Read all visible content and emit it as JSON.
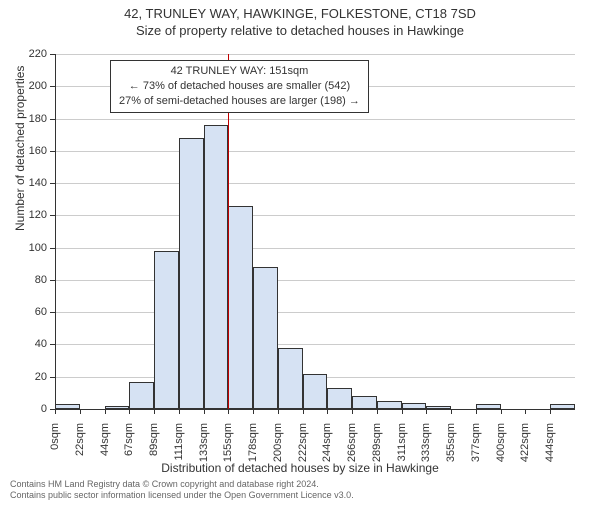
{
  "titles": {
    "main": "42, TRUNLEY WAY, HAWKINGE, FOLKESTONE, CT18 7SD",
    "sub": "Size of property relative to detached houses in Hawkinge"
  },
  "axes": {
    "y_title": "Number of detached properties",
    "x_title": "Distribution of detached houses by size in Hawkinge",
    "ylim": [
      0,
      220
    ],
    "ytick_step": 20,
    "y_ticks": [
      0,
      20,
      40,
      60,
      80,
      100,
      120,
      140,
      160,
      180,
      200,
      220
    ],
    "x_labels": [
      "0sqm",
      "22sqm",
      "44sqm",
      "67sqm",
      "89sqm",
      "111sqm",
      "133sqm",
      "155sqm",
      "178sqm",
      "200sqm",
      "222sqm",
      "244sqm",
      "266sqm",
      "289sqm",
      "311sqm",
      "333sqm",
      "355sqm",
      "377sqm",
      "400sqm",
      "422sqm",
      "444sqm"
    ]
  },
  "histogram": {
    "type": "histogram",
    "bar_color": "#d6e2f3",
    "bar_border": "#333333",
    "grid_color": "#cccccc",
    "background_color": "#ffffff",
    "values": [
      3,
      0,
      2,
      17,
      98,
      168,
      176,
      126,
      88,
      38,
      22,
      13,
      8,
      5,
      4,
      2,
      0,
      3,
      0,
      0,
      3
    ]
  },
  "reference": {
    "line_color": "#c00000",
    "x_index": 7,
    "info_lines": {
      "l1": "42 TRUNLEY WAY: 151sqm",
      "l2": "← 73% of detached houses are smaller (542)",
      "l3": "27% of semi-detached houses are larger (198) →"
    }
  },
  "footer": {
    "l1": "Contains HM Land Registry data © Crown copyright and database right 2024.",
    "l2": "Contains public sector information licensed under the Open Government Licence v3.0."
  },
  "style": {
    "title_fontsize": 13,
    "axis_label_fontsize": 12,
    "tick_fontsize": 11,
    "info_fontsize": 11,
    "footer_fontsize": 9
  }
}
